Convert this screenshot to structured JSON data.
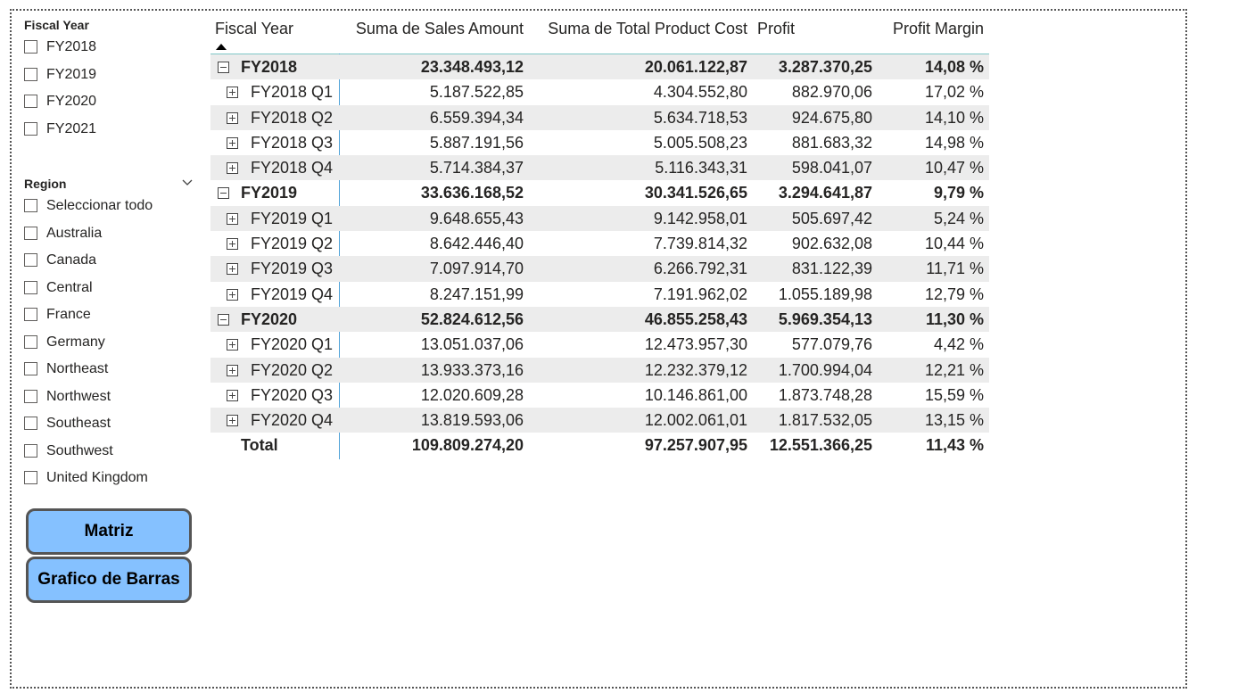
{
  "slicers": {
    "fiscal_year": {
      "title": "Fiscal Year",
      "items": [
        "FY2018",
        "FY2019",
        "FY2020",
        "FY2021"
      ]
    },
    "region": {
      "title": "Region",
      "items": [
        "Seleccionar todo",
        "Australia",
        "Canada",
        "Central",
        "France",
        "Germany",
        "Northeast",
        "Northwest",
        "Southeast",
        "Southwest",
        "United Kingdom"
      ]
    }
  },
  "buttons": {
    "matriz": "Matriz",
    "barras": "Grafico de Barras"
  },
  "matrix": {
    "headers": {
      "fiscal_year": "Fiscal Year",
      "sales": "Suma de Sales Amount",
      "cost": "Suma de Total Product Cost",
      "profit": "Profit",
      "margin": "Profit Margin"
    },
    "rows": [
      {
        "label": "FY2018",
        "sales": "23.348.493,12",
        "cost": "20.061.122,87",
        "profit": "3.287.370,25",
        "margin": "14,08 %"
      },
      {
        "label": "FY2018 Q1",
        "sales": "5.187.522,85",
        "cost": "4.304.552,80",
        "profit": "882.970,06",
        "margin": "17,02 %"
      },
      {
        "label": "FY2018 Q2",
        "sales": "6.559.394,34",
        "cost": "5.634.718,53",
        "profit": "924.675,80",
        "margin": "14,10 %"
      },
      {
        "label": "FY2018 Q3",
        "sales": "5.887.191,56",
        "cost": "5.005.508,23",
        "profit": "881.683,32",
        "margin": "14,98 %"
      },
      {
        "label": "FY2018 Q4",
        "sales": "5.714.384,37",
        "cost": "5.116.343,31",
        "profit": "598.041,07",
        "margin": "10,47 %"
      },
      {
        "label": "FY2019",
        "sales": "33.636.168,52",
        "cost": "30.341.526,65",
        "profit": "3.294.641,87",
        "margin": "9,79 %"
      },
      {
        "label": "FY2019 Q1",
        "sales": "9.648.655,43",
        "cost": "9.142.958,01",
        "profit": "505.697,42",
        "margin": "5,24 %"
      },
      {
        "label": "FY2019 Q2",
        "sales": "8.642.446,40",
        "cost": "7.739.814,32",
        "profit": "902.632,08",
        "margin": "10,44 %"
      },
      {
        "label": "FY2019 Q3",
        "sales": "7.097.914,70",
        "cost": "6.266.792,31",
        "profit": "831.122,39",
        "margin": "11,71 %"
      },
      {
        "label": "FY2019 Q4",
        "sales": "8.247.151,99",
        "cost": "7.191.962,02",
        "profit": "1.055.189,98",
        "margin": "12,79 %"
      },
      {
        "label": "FY2020",
        "sales": "52.824.612,56",
        "cost": "46.855.258,43",
        "profit": "5.969.354,13",
        "margin": "11,30 %"
      },
      {
        "label": "FY2020 Q1",
        "sales": "13.051.037,06",
        "cost": "12.473.957,30",
        "profit": "577.079,76",
        "margin": "4,42 %"
      },
      {
        "label": "FY2020 Q2",
        "sales": "13.933.373,16",
        "cost": "12.232.379,12",
        "profit": "1.700.994,04",
        "margin": "12,21 %"
      },
      {
        "label": "FY2020 Q3",
        "sales": "12.020.609,28",
        "cost": "10.146.861,00",
        "profit": "1.873.748,28",
        "margin": "15,59 %"
      },
      {
        "label": "FY2020 Q4",
        "sales": "13.819.593,06",
        "cost": "12.002.061,01",
        "profit": "1.817.532,05",
        "margin": "13,15 %"
      }
    ],
    "total": {
      "label": "Total",
      "sales": "109.809.274,20",
      "cost": "97.257.907,95",
      "profit": "12.551.366,25",
      "margin": "11,43 %"
    }
  }
}
